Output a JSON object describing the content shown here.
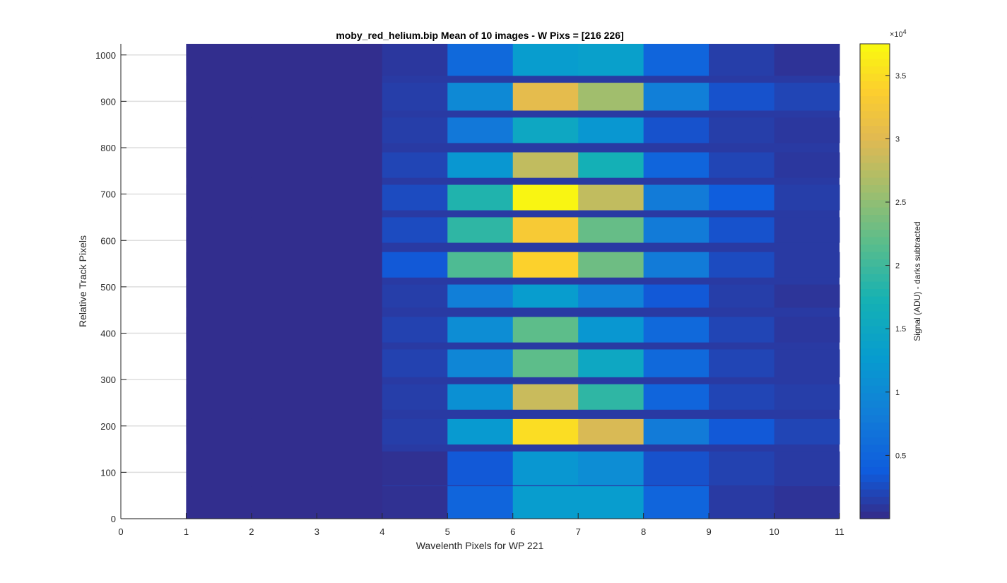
{
  "chart_data": {
    "type": "heatmap",
    "title": "moby_red_helium.bip  Mean of 10 images - W Pixs = [216  226]",
    "xlabel": "Wavelenth Pixels for WP 221",
    "ylabel": "Relative Track Pixels",
    "xlim": [
      0,
      11
    ],
    "ylim": [
      0,
      1024
    ],
    "xticks": [
      "0",
      "1",
      "2",
      "3",
      "4",
      "5",
      "6",
      "7",
      "8",
      "9",
      "10",
      "11"
    ],
    "yticks": [
      "0",
      "100",
      "200",
      "300",
      "400",
      "500",
      "600",
      "700",
      "800",
      "900",
      "1000"
    ],
    "ytick_values": [
      0,
      100,
      200,
      300,
      400,
      500,
      600,
      700,
      800,
      900,
      1000
    ],
    "grid": "y",
    "colormap": "parula",
    "colorbar": {
      "label": "Signal (ADU) - darks subtracted",
      "multiplier": "×10",
      "exponent": "4",
      "ticks": [
        "0.5",
        "1",
        "1.5",
        "2",
        "2.5",
        "3",
        "3.5"
      ],
      "tick_values": [
        0.5,
        1,
        1.5,
        2,
        2.5,
        3,
        3.5
      ],
      "clim": [
        0.0,
        3.75
      ]
    },
    "x_columns": [
      1,
      2,
      3,
      4,
      5,
      6,
      7,
      8,
      9,
      10
    ],
    "background_level": 0.03,
    "band_gap_level": 0.12,
    "tracks": [
      {
        "y_range": [
          0,
          70
        ],
        "values": [
          0.03,
          0.03,
          0.03,
          0.05,
          0.5,
          1.3,
          1.3,
          0.5,
          0.12,
          0.07
        ]
      },
      {
        "y_range": [
          72,
          145
        ],
        "values": [
          0.03,
          0.03,
          0.03,
          0.05,
          0.35,
          1.2,
          1.05,
          0.3,
          0.18,
          0.12
        ]
      },
      {
        "y_range": [
          160,
          215
        ],
        "values": [
          0.03,
          0.03,
          0.03,
          0.15,
          1.25,
          3.5,
          2.95,
          0.8,
          0.35,
          0.2
        ]
      },
      {
        "y_range": [
          235,
          290
        ],
        "values": [
          0.03,
          0.03,
          0.03,
          0.15,
          1.1,
          2.85,
          1.9,
          0.5,
          0.2,
          0.15
        ]
      },
      {
        "y_range": [
          305,
          365
        ],
        "values": [
          0.03,
          0.03,
          0.03,
          0.18,
          0.95,
          2.2,
          1.5,
          0.55,
          0.2,
          0.12
        ]
      },
      {
        "y_range": [
          380,
          435
        ],
        "values": [
          0.03,
          0.03,
          0.03,
          0.18,
          1.05,
          2.2,
          1.2,
          0.55,
          0.2,
          0.1
        ]
      },
      {
        "y_range": [
          455,
          505
        ],
        "values": [
          0.03,
          0.03,
          0.03,
          0.15,
          0.85,
          1.3,
          0.9,
          0.35,
          0.15,
          0.08
        ]
      },
      {
        "y_range": [
          520,
          575
        ],
        "values": [
          0.03,
          0.03,
          0.03,
          0.35,
          2.1,
          3.4,
          2.3,
          0.8,
          0.25,
          0.12
        ]
      },
      {
        "y_range": [
          595,
          650
        ],
        "values": [
          0.03,
          0.03,
          0.03,
          0.25,
          1.9,
          3.3,
          2.25,
          0.8,
          0.3,
          0.12
        ]
      },
      {
        "y_range": [
          665,
          720
        ],
        "values": [
          0.03,
          0.03,
          0.03,
          0.25,
          1.8,
          3.7,
          2.8,
          0.8,
          0.4,
          0.15
        ]
      },
      {
        "y_range": [
          735,
          790
        ],
        "values": [
          0.03,
          0.03,
          0.03,
          0.2,
          1.2,
          2.8,
          1.7,
          0.5,
          0.2,
          0.1
        ]
      },
      {
        "y_range": [
          810,
          865
        ],
        "values": [
          0.03,
          0.03,
          0.03,
          0.15,
          0.75,
          1.5,
          1.2,
          0.3,
          0.15,
          0.1
        ]
      },
      {
        "y_range": [
          880,
          940
        ],
        "values": [
          0.03,
          0.03,
          0.03,
          0.15,
          1.0,
          3.05,
          2.6,
          0.85,
          0.3,
          0.2
        ]
      },
      {
        "y_range": [
          955,
          1024
        ],
        "values": [
          0.03,
          0.03,
          0.03,
          0.1,
          0.55,
          1.3,
          1.35,
          0.5,
          0.15,
          0.07
        ]
      }
    ]
  }
}
